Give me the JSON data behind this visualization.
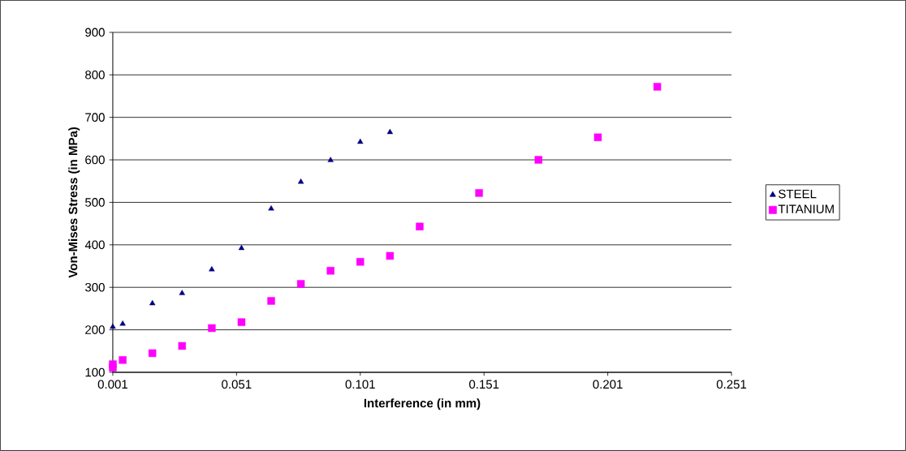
{
  "chart_data": {
    "type": "scatter",
    "xlabel": "Interference (in mm)",
    "ylabel": "Von-Mises Stress (in MPa)",
    "xlim": [
      0.001,
      0.251
    ],
    "xticks": [
      0.001,
      0.051,
      0.101,
      0.151,
      0.201,
      0.251
    ],
    "ylim": [
      100,
      900
    ],
    "yticks": [
      100,
      200,
      300,
      400,
      500,
      600,
      700,
      800,
      900
    ],
    "grid": "y",
    "legend": "right",
    "series": [
      {
        "name": "STEEL",
        "color": "#000080",
        "marker": "triangle",
        "x": [
          0.001,
          0.005,
          0.017,
          0.029,
          0.041,
          0.053,
          0.065,
          0.077,
          0.089,
          0.101,
          0.113
        ],
        "values": [
          207,
          214,
          262,
          286,
          342,
          392,
          485,
          548,
          599,
          642,
          665
        ]
      },
      {
        "name": "TITANIUM",
        "color": "#ff00ff",
        "marker": "square",
        "x": [
          0.001,
          0.001,
          0.005,
          0.017,
          0.029,
          0.041,
          0.053,
          0.065,
          0.077,
          0.089,
          0.101,
          0.113,
          0.125,
          0.149,
          0.173,
          0.197,
          0.221
        ],
        "values": [
          111,
          119,
          129,
          145,
          162,
          204,
          218,
          268,
          308,
          339,
          360,
          374,
          443,
          522,
          600,
          653,
          772
        ]
      }
    ]
  }
}
